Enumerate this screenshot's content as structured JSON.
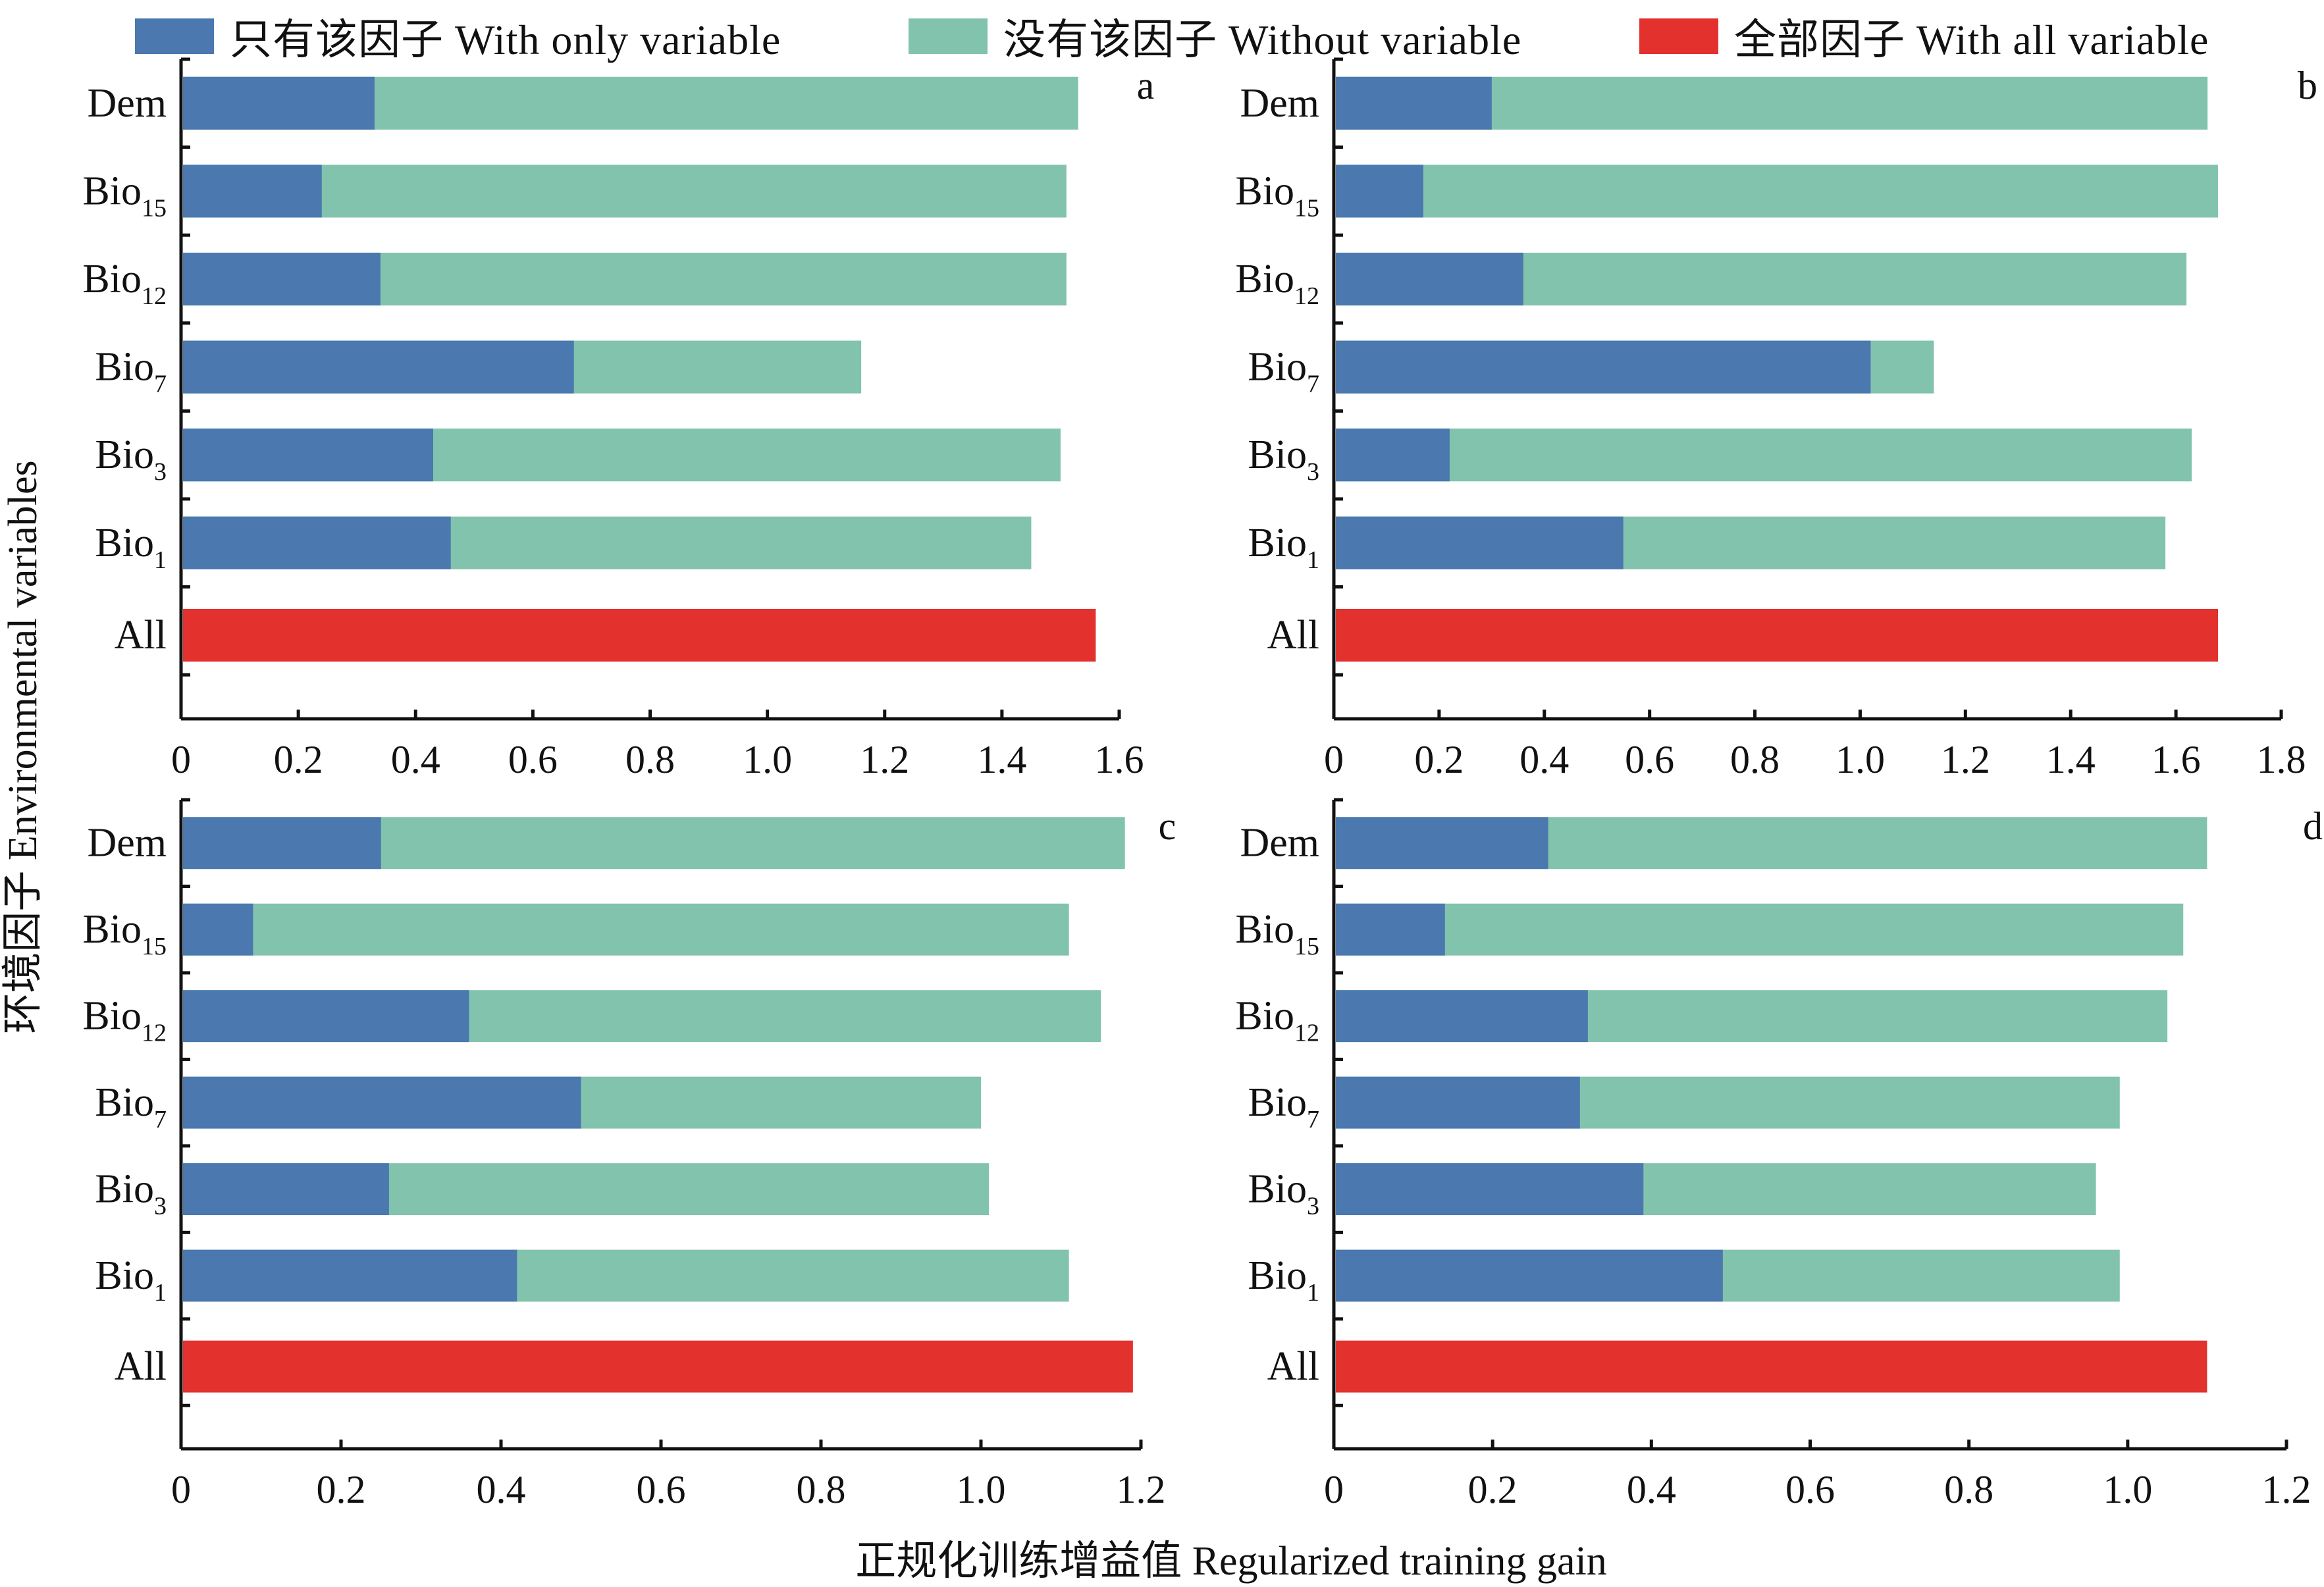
{
  "chart_data": {
    "type": "bar",
    "orientation": "horizontal-stacked",
    "legend": [
      {
        "name": "只有该因子  With only variable",
        "color": "#4a78af"
      },
      {
        "name": "没有该因子  Without variable",
        "color": "#82c3ad"
      },
      {
        "name": "全部因子  With all variable",
        "color": "#e3312e"
      }
    ],
    "legend_position": "top",
    "xlabel": "正规化训练增益值 Regularized training gain",
    "ylabel": "环境因子 Environmental variables",
    "categories": [
      "Dem",
      "Bio15",
      "Bio12",
      "Bio7",
      "Bio3",
      "Bio1",
      "All"
    ],
    "category_labels": [
      {
        "base": "Dem",
        "sub": ""
      },
      {
        "base": "Bio",
        "sub": "15"
      },
      {
        "base": "Bio",
        "sub": "12"
      },
      {
        "base": "Bio",
        "sub": "7"
      },
      {
        "base": "Bio",
        "sub": "3"
      },
      {
        "base": "Bio",
        "sub": "1"
      },
      {
        "base": "All",
        "sub": ""
      }
    ],
    "panels": [
      {
        "label": "a",
        "xlim": [
          0,
          1.6
        ],
        "xticks": [
          "0",
          "0.2",
          "0.4",
          "0.6",
          "0.8",
          "1.0",
          "1.2",
          "1.4",
          "1.6"
        ],
        "with_only": [
          0.33,
          0.24,
          0.34,
          0.67,
          0.43,
          0.46
        ],
        "without": [
          1.53,
          1.51,
          1.51,
          1.16,
          1.5,
          1.45
        ],
        "all": 1.56
      },
      {
        "label": "b",
        "xlim": [
          0,
          1.8
        ],
        "xticks": [
          "0",
          "0.2",
          "0.4",
          "0.6",
          "0.8",
          "1.0",
          "1.2",
          "1.4",
          "1.6",
          "1.8"
        ],
        "with_only": [
          0.3,
          0.17,
          0.36,
          1.02,
          0.22,
          0.55
        ],
        "without": [
          1.66,
          1.68,
          1.62,
          1.14,
          1.63,
          1.58
        ],
        "all": 1.68
      },
      {
        "label": "c",
        "xlim": [
          0,
          1.2
        ],
        "xticks": [
          "0",
          "0.2",
          "0.4",
          "0.6",
          "0.8",
          "1.0",
          "1.2"
        ],
        "with_only": [
          0.25,
          0.09,
          0.36,
          0.5,
          0.26,
          0.42
        ],
        "without": [
          1.18,
          1.11,
          1.15,
          1.0,
          1.01,
          1.11
        ],
        "all": 1.19
      },
      {
        "label": "d",
        "xlim": [
          0,
          1.2
        ],
        "xticks": [
          "0",
          "0.2",
          "0.4",
          "0.6",
          "0.8",
          "1.0",
          "1.2"
        ],
        "with_only": [
          0.27,
          0.14,
          0.32,
          0.31,
          0.39,
          0.49
        ],
        "without": [
          1.1,
          1.07,
          1.05,
          0.99,
          0.96,
          0.99
        ],
        "all": 1.1
      }
    ],
    "grid": false
  }
}
